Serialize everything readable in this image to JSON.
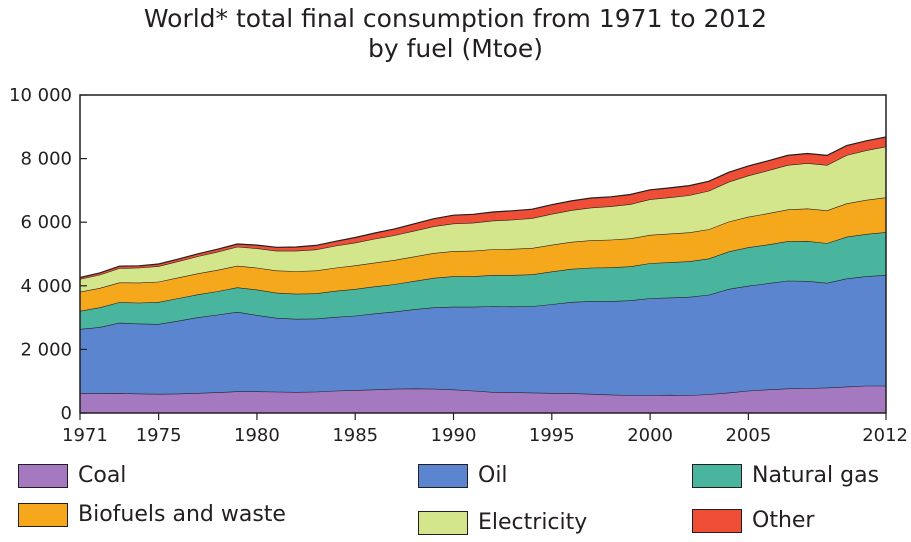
{
  "title": {
    "line1": "World* total final consumption from 1971 to 2012",
    "line2": "by fuel (Mtoe)"
  },
  "chart_data": {
    "type": "area",
    "stacked": true,
    "title": "World* total final consumption from 1971 to 2012 by fuel (Mtoe)",
    "ylim": [
      0,
      10000
    ],
    "y_ticks": [
      0,
      2000,
      4000,
      6000,
      8000,
      10000
    ],
    "y_tick_labels": [
      "0",
      "2 000",
      "4 000",
      "6 000",
      "8 000",
      "10 000"
    ],
    "x_ticks": [
      1971,
      1975,
      1980,
      1985,
      1990,
      1995,
      2000,
      2005,
      2012
    ],
    "x_tick_labels": [
      "1971",
      "1975",
      "1980",
      "1985",
      "1990",
      "1995",
      "2000",
      "2005",
      "2012"
    ],
    "xlim": [
      1971,
      2012
    ],
    "grid": false,
    "legend_position": "bottom",
    "x": [
      1971,
      1972,
      1973,
      1974,
      1975,
      1976,
      1977,
      1978,
      1979,
      1980,
      1981,
      1982,
      1983,
      1984,
      1985,
      1986,
      1987,
      1988,
      1989,
      1990,
      1991,
      1992,
      1993,
      1994,
      1995,
      1996,
      1997,
      1998,
      1999,
      2000,
      2001,
      2002,
      2003,
      2004,
      2005,
      2006,
      2007,
      2008,
      2009,
      2010,
      2011,
      2012
    ],
    "series": [
      {
        "name": "Coal",
        "color": "#a579c0",
        "values": [
          620,
          620,
          625,
          610,
          600,
          610,
          630,
          650,
          680,
          680,
          670,
          660,
          670,
          700,
          720,
          740,
          760,
          770,
          760,
          740,
          700,
          660,
          650,
          640,
          630,
          620,
          600,
          580,
          560,
          560,
          570,
          560,
          590,
          640,
          700,
          740,
          770,
          780,
          800,
          830,
          860,
          860
        ]
      },
      {
        "name": "Oil",
        "color": "#5b86cf",
        "values": [
          2020,
          2080,
          2210,
          2200,
          2200,
          2290,
          2380,
          2440,
          2500,
          2400,
          2320,
          2300,
          2300,
          2320,
          2340,
          2390,
          2430,
          2490,
          2560,
          2600,
          2640,
          2700,
          2700,
          2720,
          2790,
          2870,
          2920,
          2940,
          2980,
          3050,
          3060,
          3090,
          3130,
          3260,
          3300,
          3340,
          3390,
          3370,
          3290,
          3400,
          3440,
          3480
        ]
      },
      {
        "name": "Natural gas",
        "color": "#49b59f",
        "values": [
          570,
          620,
          650,
          660,
          690,
          710,
          720,
          740,
          770,
          800,
          790,
          790,
          790,
          820,
          840,
          850,
          860,
          890,
          930,
          960,
          960,
          980,
          990,
          1000,
          1030,
          1040,
          1050,
          1060,
          1070,
          1100,
          1110,
          1120,
          1140,
          1180,
          1210,
          1220,
          1240,
          1260,
          1250,
          1310,
          1330,
          1350
        ]
      },
      {
        "name": "Biofuels and waste",
        "color": "#f5a81c",
        "values": [
          600,
          610,
          620,
          630,
          640,
          650,
          660,
          670,
          680,
          690,
          700,
          710,
          720,
          730,
          740,
          750,
          760,
          770,
          780,
          790,
          800,
          810,
          820,
          830,
          840,
          850,
          860,
          870,
          880,
          890,
          900,
          910,
          920,
          940,
          960,
          980,
          1000,
          1020,
          1030,
          1050,
          1070,
          1090
        ]
      },
      {
        "name": "Electricity",
        "color": "#d4e68c",
        "values": [
          400,
          420,
          450,
          470,
          490,
          510,
          540,
          570,
          600,
          610,
          620,
          640,
          660,
          690,
          720,
          750,
          780,
          810,
          840,
          870,
          880,
          900,
          920,
          940,
          970,
          1000,
          1030,
          1050,
          1080,
          1120,
          1140,
          1170,
          1210,
          1250,
          1300,
          1350,
          1400,
          1430,
          1430,
          1520,
          1560,
          1600
        ]
      },
      {
        "name": "Other",
        "color": "#ee4e36",
        "values": [
          50,
          55,
          60,
          60,
          65,
          70,
          75,
          80,
          85,
          100,
          110,
          120,
          130,
          140,
          160,
          180,
          200,
          220,
          240,
          260,
          270,
          270,
          280,
          280,
          290,
          290,
          300,
          300,
          300,
          300,
          300,
          300,
          300,
          300,
          300,
          300,
          300,
          300,
          300,
          300,
          300,
          300
        ]
      }
    ]
  },
  "legend": [
    {
      "label": "Coal",
      "color": "#a579c0"
    },
    {
      "label": "Oil",
      "color": "#5b86cf"
    },
    {
      "label": "Natural gas",
      "color": "#49b59f"
    },
    {
      "label": "Biofuels and waste",
      "color": "#f5a81c"
    },
    {
      "label": "Electricity",
      "color": "#d4e68c"
    },
    {
      "label": "Other",
      "color": "#ee4e36"
    }
  ]
}
